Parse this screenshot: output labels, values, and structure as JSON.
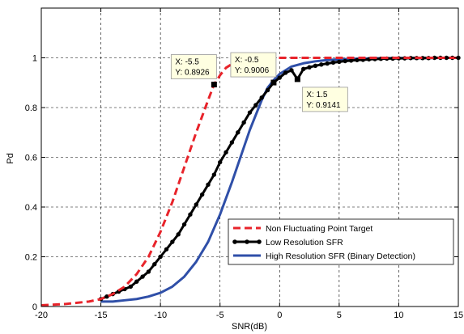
{
  "chart_data": {
    "type": "line",
    "title": "",
    "xlabel": "SNR(dB)",
    "ylabel": "Pd",
    "xlim": [
      -20,
      15
    ],
    "ylim": [
      0,
      1.2
    ],
    "xticks": [
      -20,
      -15,
      -10,
      -5,
      0,
      5,
      10,
      15
    ],
    "yticks": [
      0,
      0.2,
      0.4,
      0.6,
      0.8,
      1
    ],
    "xtick_labels": [
      "-20",
      "-15",
      "-10",
      "-5",
      "0",
      "5",
      "10",
      "15"
    ],
    "ytick_labels": [
      "0",
      "0.2",
      "0.4",
      "0.6",
      "0.8",
      "1"
    ],
    "grid": true,
    "grid_style": "dashed",
    "legend_position": "lower-right",
    "series": [
      {
        "name": "Non Fluctuating Point Target",
        "color": "#e8242b",
        "style": "dashed",
        "marker": "none",
        "x": [
          -20,
          -18,
          -16,
          -15,
          -14,
          -13,
          -12,
          -11,
          -10,
          -9,
          -8,
          -7,
          -6,
          -5.5,
          -5,
          -4.5,
          -4,
          -3.5,
          -3,
          -2.5,
          -2,
          -1.5,
          -1,
          0,
          1,
          2,
          3,
          5,
          8,
          15
        ],
        "y": [
          0.005,
          0.01,
          0.02,
          0.03,
          0.05,
          0.08,
          0.13,
          0.2,
          0.3,
          0.42,
          0.56,
          0.7,
          0.83,
          0.8926,
          0.93,
          0.96,
          0.975,
          0.985,
          0.992,
          0.996,
          0.998,
          0.999,
          1.0,
          1.0,
          1.0,
          1.0,
          1.0,
          1.0,
          1.0,
          1.0
        ]
      },
      {
        "name": "Low Resolution SFR",
        "color": "#000000",
        "style": "solid",
        "marker": "circle",
        "x": [
          -15,
          -14.5,
          -14,
          -13.5,
          -13,
          -12.5,
          -12,
          -11.5,
          -11,
          -10.5,
          -10,
          -9.5,
          -9,
          -8.5,
          -8,
          -7.5,
          -7,
          -6.5,
          -6,
          -5.5,
          -5,
          -4.5,
          -4,
          -3.5,
          -3,
          -2.5,
          -2,
          -1.5,
          -1,
          -0.5,
          0,
          0.5,
          1,
          1.5,
          2,
          2.5,
          3,
          3.5,
          4,
          4.5,
          5,
          5.5,
          6,
          6.5,
          7,
          7.5,
          8,
          8.5,
          9,
          9.5,
          10,
          10.5,
          11,
          11.5,
          12,
          12.5,
          13,
          13.5,
          14,
          14.5,
          15
        ],
        "y": [
          0.03,
          0.04,
          0.05,
          0.06,
          0.07,
          0.08,
          0.1,
          0.12,
          0.14,
          0.17,
          0.2,
          0.23,
          0.26,
          0.29,
          0.33,
          0.37,
          0.41,
          0.45,
          0.49,
          0.53,
          0.58,
          0.62,
          0.66,
          0.7,
          0.74,
          0.78,
          0.81,
          0.84,
          0.87,
          0.9006,
          0.92,
          0.94,
          0.95,
          0.9141,
          0.955,
          0.962,
          0.968,
          0.973,
          0.977,
          0.981,
          0.984,
          0.987,
          0.989,
          0.991,
          0.992,
          0.994,
          0.995,
          0.996,
          0.997,
          0.997,
          0.998,
          0.998,
          0.999,
          0.999,
          0.999,
          0.999,
          1.0,
          1.0,
          1.0,
          1.0,
          1.0
        ]
      },
      {
        "name": "High Resolution SFR (Binary Detection)",
        "color": "#2f4fa8",
        "style": "solid",
        "marker": "none",
        "x": [
          -15,
          -14,
          -13,
          -12,
          -11,
          -10,
          -9,
          -8,
          -7,
          -6,
          -5,
          -4,
          -3,
          -2.5,
          -2,
          -1.5,
          -1,
          -0.5,
          0,
          0.5,
          1,
          2,
          3,
          4,
          5,
          6,
          8,
          10,
          15
        ],
        "y": [
          0.02,
          0.02,
          0.025,
          0.03,
          0.04,
          0.055,
          0.08,
          0.12,
          0.18,
          0.26,
          0.37,
          0.5,
          0.64,
          0.71,
          0.77,
          0.83,
          0.88,
          0.91,
          0.935,
          0.95,
          0.965,
          0.978,
          0.986,
          0.991,
          0.994,
          0.996,
          0.998,
          0.999,
          1.0
        ]
      }
    ],
    "datatips": [
      {
        "x": -5.5,
        "y": 0.8926,
        "label_x": "X: -5.5",
        "label_y": "Y: 0.8926",
        "side": "upper-left"
      },
      {
        "x": -0.5,
        "y": 0.9006,
        "label_x": "X: -0.5",
        "label_y": "Y: 0.9006",
        "side": "upper-left"
      },
      {
        "x": 1.5,
        "y": 0.9141,
        "label_x": "X: 1.5",
        "label_y": "Y: 0.9141",
        "side": "lower-right"
      }
    ]
  }
}
